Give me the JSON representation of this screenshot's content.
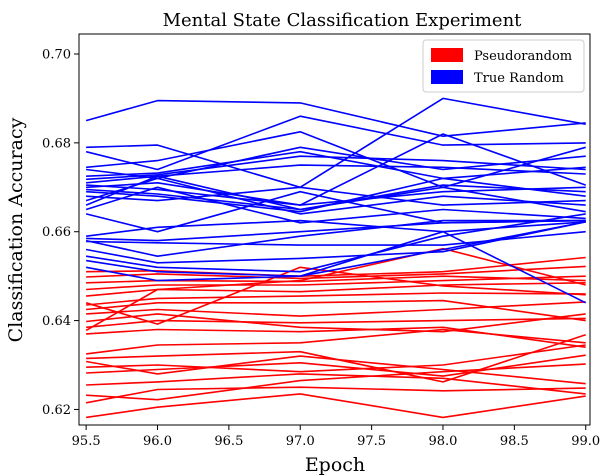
{
  "chart_data": {
    "type": "line",
    "title": "Mental State Classification Experiment",
    "xlabel": "Epoch",
    "ylabel": "Classification Accuracy",
    "x": [
      95.5,
      96.0,
      97.0,
      98.0,
      99.0
    ],
    "xlim": [
      95.45,
      99.03
    ],
    "ylim": [
      0.6165,
      0.7045
    ],
    "xticks": [
      "95.5",
      "96.0",
      "96.5",
      "97.0",
      "97.5",
      "98.0",
      "98.5",
      "99.0"
    ],
    "yticks": [
      "0.62",
      "0.64",
      "0.66",
      "0.68",
      "0.70"
    ],
    "grid": false,
    "legend": {
      "position": "top-right",
      "entries": [
        {
          "label": "Pseudorandom",
          "color": "#ff0000"
        },
        {
          "label": "True Random",
          "color": "#0000ff"
        }
      ]
    },
    "groups": [
      {
        "label": "Pseudorandom",
        "color": "#ff0000",
        "runs": [
          [
            0.6182,
            0.6205,
            0.6235,
            0.6182,
            0.623
          ],
          [
            0.6215,
            0.6245,
            0.625,
            0.6242,
            0.6248
          ],
          [
            0.6232,
            0.6222,
            0.6265,
            0.6285,
            0.6302
          ],
          [
            0.6255,
            0.6262,
            0.628,
            0.627,
            0.6235
          ],
          [
            0.6282,
            0.629,
            0.6305,
            0.6275,
            0.6322
          ],
          [
            0.6295,
            0.63,
            0.6285,
            0.63,
            0.6345
          ],
          [
            0.6308,
            0.628,
            0.632,
            0.629,
            0.6258
          ],
          [
            0.6315,
            0.632,
            0.633,
            0.6262,
            0.6368
          ],
          [
            0.6325,
            0.6345,
            0.635,
            0.638,
            0.635
          ],
          [
            0.637,
            0.638,
            0.6375,
            0.6385,
            0.634
          ],
          [
            0.6385,
            0.64,
            0.6395,
            0.64,
            0.6405
          ],
          [
            0.6398,
            0.6415,
            0.6385,
            0.6375,
            0.6415
          ],
          [
            0.6415,
            0.6425,
            0.641,
            0.6425,
            0.6442
          ],
          [
            0.6425,
            0.644,
            0.644,
            0.6445,
            0.64
          ],
          [
            0.6435,
            0.645,
            0.6455,
            0.6462,
            0.646
          ],
          [
            0.6455,
            0.647,
            0.6465,
            0.648,
            0.6485
          ],
          [
            0.647,
            0.648,
            0.648,
            0.649,
            0.65
          ],
          [
            0.6485,
            0.649,
            0.6488,
            0.65,
            0.649
          ],
          [
            0.6498,
            0.6505,
            0.6495,
            0.6505,
            0.6522
          ],
          [
            0.651,
            0.6512,
            0.65,
            0.651,
            0.6542
          ],
          [
            0.6378,
            0.647,
            0.649,
            0.6562,
            0.648
          ],
          [
            0.644,
            0.6392,
            0.652,
            0.6478,
            0.6458
          ]
        ]
      },
      {
        "label": "True Random",
        "color": "#0000ff",
        "runs": [
          [
            0.685,
            0.6895,
            0.689,
            0.6815,
            0.6845
          ],
          [
            0.679,
            0.6795,
            0.67,
            0.69,
            0.6842
          ],
          [
            0.678,
            0.674,
            0.686,
            0.6795,
            0.68
          ],
          [
            0.6745,
            0.676,
            0.6825,
            0.67,
            0.679
          ],
          [
            0.674,
            0.672,
            0.679,
            0.674,
            0.677
          ],
          [
            0.6725,
            0.6732,
            0.678,
            0.672,
            0.6745
          ],
          [
            0.6718,
            0.6728,
            0.677,
            0.676,
            0.674
          ],
          [
            0.671,
            0.6725,
            0.675,
            0.6745,
            0.673
          ],
          [
            0.6705,
            0.6695,
            0.666,
            0.682,
            0.6705
          ],
          [
            0.67,
            0.671,
            0.666,
            0.669,
            0.67
          ],
          [
            0.6695,
            0.6685,
            0.665,
            0.6705,
            0.669
          ],
          [
            0.669,
            0.668,
            0.6645,
            0.672,
            0.668
          ],
          [
            0.668,
            0.667,
            0.67,
            0.666,
            0.667
          ],
          [
            0.667,
            0.672,
            0.664,
            0.668,
            0.666
          ],
          [
            0.666,
            0.6725,
            0.665,
            0.67,
            0.6645
          ],
          [
            0.665,
            0.67,
            0.662,
            0.665,
            0.663
          ],
          [
            0.664,
            0.66,
            0.669,
            0.662,
            0.6625
          ],
          [
            0.659,
            0.661,
            0.6625,
            0.66,
            0.6622
          ],
          [
            0.6585,
            0.658,
            0.66,
            0.662,
            0.6625
          ],
          [
            0.658,
            0.6545,
            0.659,
            0.6625,
            0.6625
          ],
          [
            0.6578,
            0.6575,
            0.657,
            0.657,
            0.66
          ],
          [
            0.656,
            0.653,
            0.654,
            0.6555,
            0.6622
          ],
          [
            0.6545,
            0.652,
            0.651,
            0.659,
            0.664
          ],
          [
            0.6535,
            0.651,
            0.65,
            0.66,
            0.644
          ],
          [
            0.652,
            0.649,
            0.65,
            0.656,
            0.6622
          ]
        ]
      }
    ]
  }
}
